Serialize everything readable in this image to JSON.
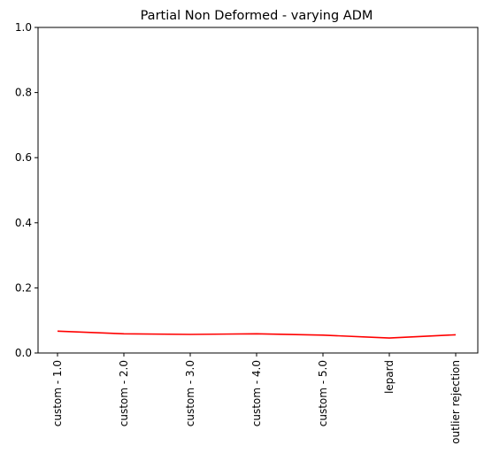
{
  "chart_data": {
    "type": "line",
    "title": "Partial Non Deformed - varying ADM",
    "xlabel": "",
    "ylabel": "",
    "categories": [
      "custom - 1.0",
      "custom - 2.0",
      "custom - 3.0",
      "custom - 4.0",
      "custom - 5.0",
      "lepard",
      "outlier rejection"
    ],
    "series": [
      {
        "values": [
          0.067,
          0.059,
          0.057,
          0.059,
          0.055,
          0.046,
          0.056
        ],
        "color": "#ff0000"
      }
    ],
    "ylim": [
      0.0,
      1.0
    ],
    "yticks": [
      0.0,
      0.2,
      0.4,
      0.6,
      0.8,
      1.0
    ],
    "ytick_labels": [
      "0.0",
      "0.2",
      "0.4",
      "0.6",
      "0.8",
      "1.0"
    ],
    "grid": false,
    "legend": "none"
  }
}
